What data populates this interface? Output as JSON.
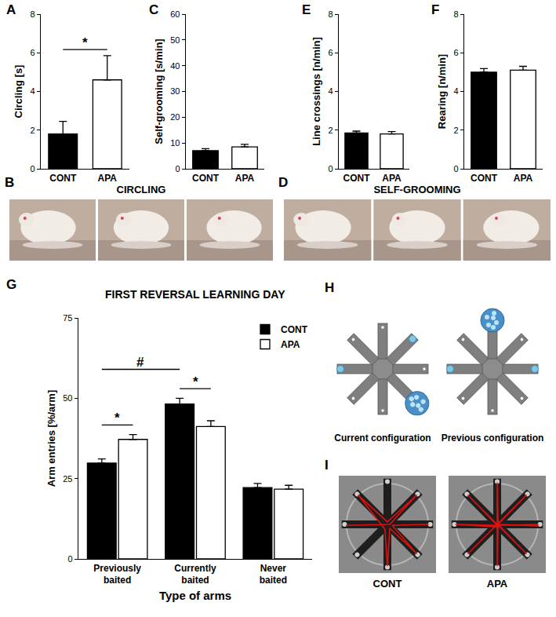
{
  "chart_data": [
    {
      "type": "bar",
      "label": "A",
      "y_label": "Circling [s]",
      "categories": [
        "CONT",
        "APA"
      ],
      "values": [
        1.8,
        4.6
      ],
      "errors": [
        0.65,
        1.25
      ],
      "colors": [
        "#000000",
        "#ffffff"
      ],
      "ylim": [
        0,
        8
      ],
      "yticks": [
        0,
        2,
        4,
        6,
        8
      ],
      "grid": false,
      "significance": [
        {
          "text": "*",
          "between": [
            "CONT",
            "APA"
          ]
        }
      ]
    },
    {
      "type": "bar",
      "label": "C",
      "y_label": "Self-grooming [s/min]",
      "categories": [
        "CONT",
        "APA"
      ],
      "values": [
        7.0,
        8.5
      ],
      "errors": [
        0.8,
        1.0
      ],
      "colors": [
        "#000000",
        "#ffffff"
      ],
      "ylim": [
        0,
        60
      ],
      "yticks": [
        0,
        10,
        20,
        30,
        40,
        50,
        60
      ],
      "grid": false
    },
    {
      "type": "bar",
      "label": "E",
      "y_label": "Line crossings [n/min]",
      "categories": [
        "CONT",
        "APA"
      ],
      "values": [
        1.85,
        1.8
      ],
      "errors": [
        0.1,
        0.12
      ],
      "colors": [
        "#000000",
        "#ffffff"
      ],
      "ylim": [
        0,
        8
      ],
      "yticks": [
        0,
        2,
        4,
        6,
        8
      ],
      "grid": false
    },
    {
      "type": "bar",
      "label": "F",
      "y_label": "Rearing [n/min]",
      "categories": [
        "CONT",
        "APA"
      ],
      "values": [
        5.0,
        5.1
      ],
      "errors": [
        0.18,
        0.2
      ],
      "colors": [
        "#000000",
        "#ffffff"
      ],
      "ylim": [
        0,
        8
      ],
      "yticks": [
        0,
        2,
        4,
        6,
        8
      ],
      "grid": false
    },
    {
      "type": "bar",
      "label": "G",
      "title": "FIRST REVERSAL LEARNING DAY",
      "x_label": "Type of arms",
      "y_label": "Arm entries [%/arm]",
      "categories": [
        "Previously baited",
        "Currently baited",
        "Never baited"
      ],
      "series": [
        {
          "name": "CONT",
          "color": "#000000",
          "values": [
            29.8,
            48.2,
            22.2
          ],
          "errors": [
            1.3,
            1.8,
            1.3
          ]
        },
        {
          "name": "APA",
          "color": "#ffffff",
          "values": [
            37.2,
            41.2,
            21.7
          ],
          "errors": [
            1.5,
            1.8,
            1.2
          ]
        }
      ],
      "ylim": [
        0,
        75
      ],
      "yticks": [
        0,
        25,
        50,
        75
      ],
      "grid": false,
      "legend": "top right",
      "significance": [
        {
          "text": "*",
          "category": "Previously baited",
          "between": [
            "CONT",
            "APA"
          ]
        },
        {
          "text": "*",
          "category": "Currently baited",
          "between": [
            "CONT",
            "APA"
          ]
        },
        {
          "text": "#",
          "series": "CONT",
          "between": [
            "Previously baited",
            "Currently baited"
          ]
        }
      ]
    }
  ],
  "panels": [
    {
      "label": "B",
      "title": "CIRCLING"
    },
    {
      "label": "D",
      "title": "SELF-GROOMING"
    },
    {
      "label": "H",
      "captions": [
        "Current configuration",
        "Previous configuration"
      ]
    },
    {
      "label": "I",
      "captions": [
        "CONT",
        "APA"
      ]
    }
  ]
}
